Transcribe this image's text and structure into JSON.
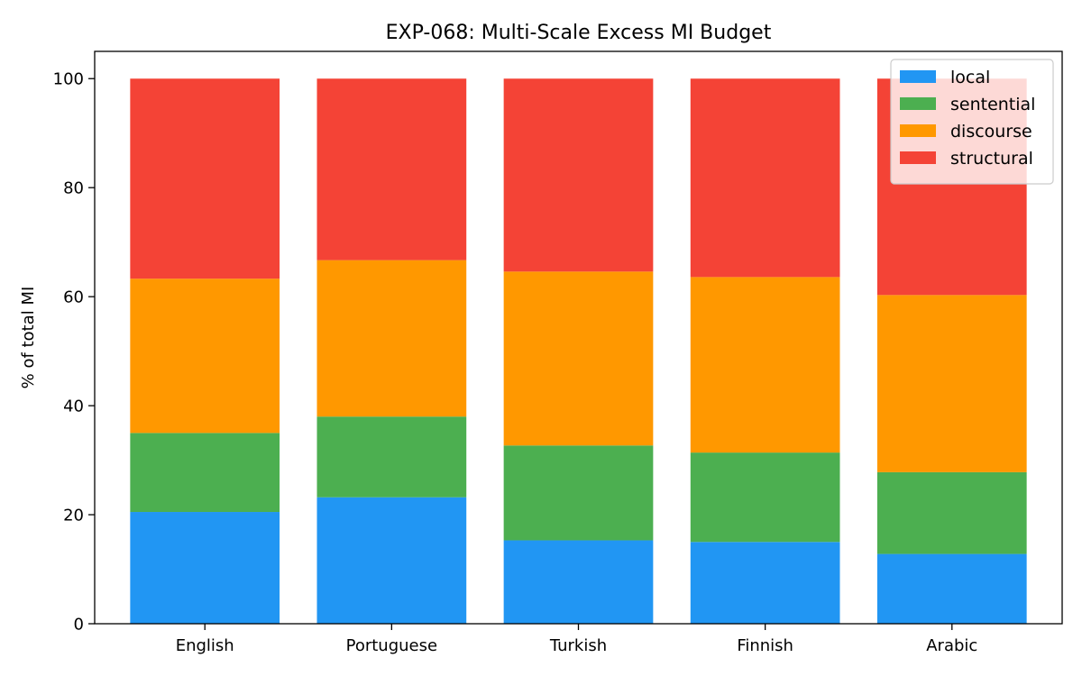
{
  "chart_data": {
    "type": "bar",
    "stacked": true,
    "title": "EXP-068: Multi-Scale Excess MI Budget",
    "xlabel": "",
    "ylabel": "% of total MI",
    "ylim": [
      0,
      105
    ],
    "yticks": [
      0,
      20,
      40,
      60,
      80,
      100
    ],
    "categories": [
      "English",
      "Portuguese",
      "Turkish",
      "Finnish",
      "Arabic"
    ],
    "series": [
      {
        "name": "local",
        "color": "#2196F3",
        "values": [
          20.5,
          23.2,
          15.3,
          15.0,
          12.8
        ]
      },
      {
        "name": "sentential",
        "color": "#4CAF50",
        "values": [
          14.5,
          14.8,
          17.4,
          16.4,
          15.0
        ]
      },
      {
        "name": "discourse",
        "color": "#FF9800",
        "values": [
          28.3,
          28.7,
          31.9,
          32.2,
          32.5
        ]
      },
      {
        "name": "structural",
        "color": "#F44336",
        "values": [
          36.7,
          33.3,
          35.4,
          36.4,
          39.7
        ]
      }
    ],
    "legend_position": "top-right",
    "grid": false
  }
}
